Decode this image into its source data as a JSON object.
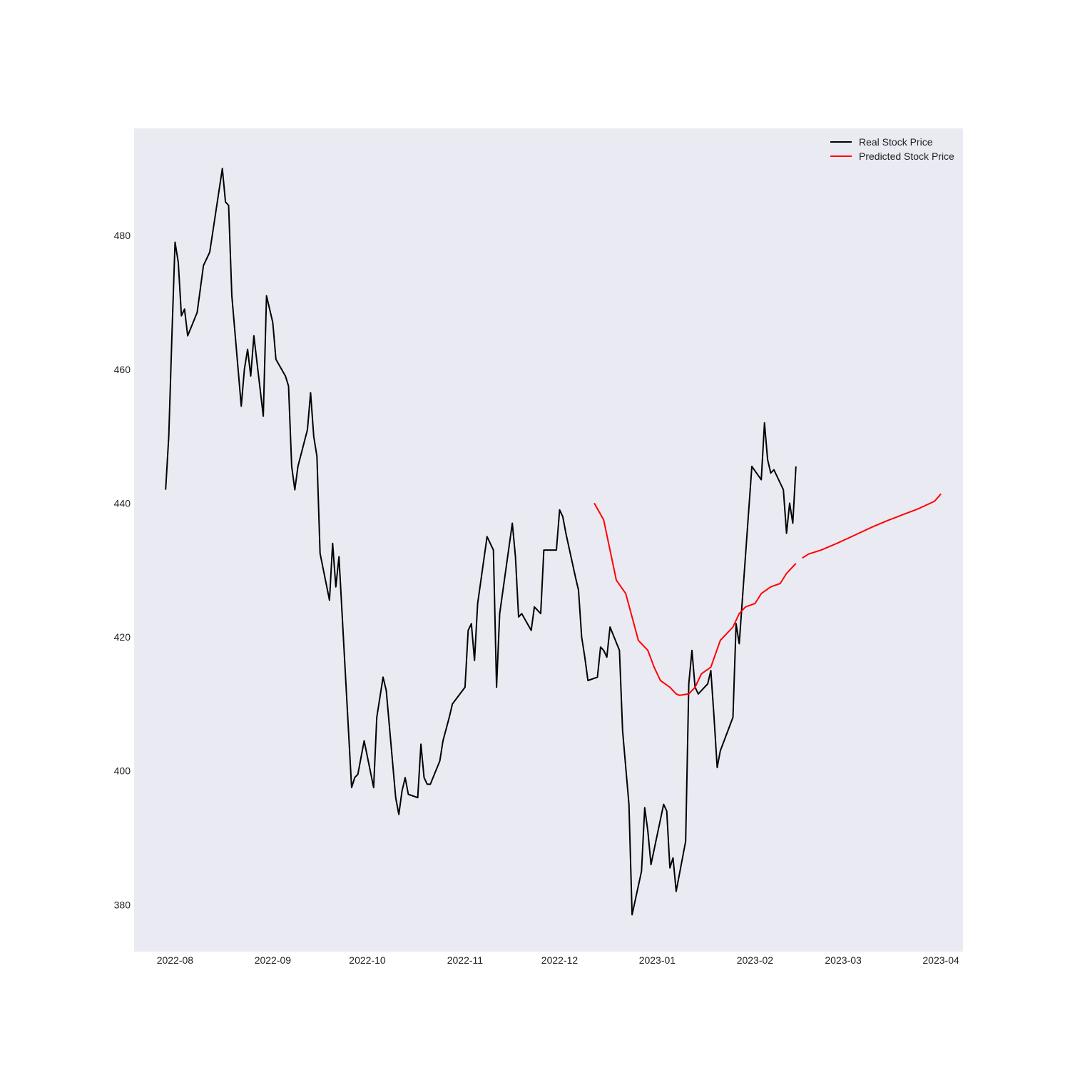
{
  "chart_data": {
    "type": "line",
    "title": "",
    "xlabel": "",
    "ylabel": "",
    "ylim": [
      373,
      496
    ],
    "xlim": [
      "2022-07-19",
      "2023-04-08"
    ],
    "y_ticks": [
      380,
      400,
      420,
      440,
      460,
      480
    ],
    "x_ticks": [
      "2022-08",
      "2022-09",
      "2022-10",
      "2022-11",
      "2022-12",
      "2023-01",
      "2023-02",
      "2023-03",
      "2023-04"
    ],
    "grid": false,
    "background": "#EAEAF2",
    "legend": {
      "position": "top-right"
    },
    "series": [
      {
        "name": "Real Stock Price",
        "color": "#000000",
        "points": [
          [
            "2022-07-29",
            442.0
          ],
          [
            "2022-07-30",
            450.0
          ],
          [
            "2022-07-31",
            465.0
          ],
          [
            "2022-08-01",
            479.0
          ],
          [
            "2022-08-02",
            476.0
          ],
          [
            "2022-08-03",
            468.0
          ],
          [
            "2022-08-04",
            469.0
          ],
          [
            "2022-08-05",
            465.0
          ],
          [
            "2022-08-08",
            468.5
          ],
          [
            "2022-08-10",
            475.5
          ],
          [
            "2022-08-12",
            477.5
          ],
          [
            "2022-08-16",
            490.0
          ],
          [
            "2022-08-17",
            485.0
          ],
          [
            "2022-08-18",
            484.5
          ],
          [
            "2022-08-19",
            471.0
          ],
          [
            "2022-08-22",
            454.5
          ],
          [
            "2022-08-23",
            460.0
          ],
          [
            "2022-08-24",
            463.0
          ],
          [
            "2022-08-25",
            459.0
          ],
          [
            "2022-08-26",
            465.0
          ],
          [
            "2022-08-29",
            453.0
          ],
          [
            "2022-08-30",
            471.0
          ],
          [
            "2022-09-01",
            467.0
          ],
          [
            "2022-09-02",
            461.5
          ],
          [
            "2022-09-05",
            459.0
          ],
          [
            "2022-09-06",
            457.5
          ],
          [
            "2022-09-07",
            445.5
          ],
          [
            "2022-09-08",
            442.0
          ],
          [
            "2022-09-09",
            445.5
          ],
          [
            "2022-09-12",
            451.0
          ],
          [
            "2022-09-13",
            456.5
          ],
          [
            "2022-09-14",
            450.0
          ],
          [
            "2022-09-15",
            447.0
          ],
          [
            "2022-09-16",
            432.5
          ],
          [
            "2022-09-19",
            425.5
          ],
          [
            "2022-09-20",
            434.0
          ],
          [
            "2022-09-21",
            427.5
          ],
          [
            "2022-09-22",
            432.0
          ],
          [
            "2022-09-26",
            397.5
          ],
          [
            "2022-09-27",
            399.0
          ],
          [
            "2022-09-28",
            399.5
          ],
          [
            "2022-09-29",
            402.0
          ],
          [
            "2022-09-30",
            404.5
          ],
          [
            "2022-10-03",
            397.5
          ],
          [
            "2022-10-04",
            408.0
          ],
          [
            "2022-10-06",
            414.0
          ],
          [
            "2022-10-07",
            412.0
          ],
          [
            "2022-10-10",
            396.0
          ],
          [
            "2022-10-11",
            393.5
          ],
          [
            "2022-10-12",
            397.0
          ],
          [
            "2022-10-13",
            399.0
          ],
          [
            "2022-10-14",
            396.5
          ],
          [
            "2022-10-17",
            396.0
          ],
          [
            "2022-10-18",
            404.0
          ],
          [
            "2022-10-19",
            399.0
          ],
          [
            "2022-10-20",
            398.0
          ],
          [
            "2022-10-21",
            398.0
          ],
          [
            "2022-10-24",
            401.5
          ],
          [
            "2022-10-25",
            404.5
          ],
          [
            "2022-10-27",
            408.0
          ],
          [
            "2022-10-28",
            410.0
          ],
          [
            "2022-11-01",
            412.5
          ],
          [
            "2022-11-02",
            421.0
          ],
          [
            "2022-11-03",
            422.0
          ],
          [
            "2022-11-04",
            416.5
          ],
          [
            "2022-11-05",
            425.0
          ],
          [
            "2022-11-08",
            435.0
          ],
          [
            "2022-11-10",
            433.0
          ],
          [
            "2022-11-11",
            412.5
          ],
          [
            "2022-11-12",
            423.5
          ],
          [
            "2022-11-16",
            437.0
          ],
          [
            "2022-11-17",
            432.0
          ],
          [
            "2022-11-18",
            423.0
          ],
          [
            "2022-11-19",
            423.5
          ],
          [
            "2022-11-22",
            421.0
          ],
          [
            "2022-11-23",
            424.5
          ],
          [
            "2022-11-25",
            423.5
          ],
          [
            "2022-11-26",
            433.0
          ],
          [
            "2022-11-29",
            433.0
          ],
          [
            "2022-11-30",
            433.0
          ],
          [
            "2022-12-01",
            439.0
          ],
          [
            "2022-12-02",
            438.0
          ],
          [
            "2022-12-03",
            435.5
          ],
          [
            "2022-12-06",
            429.0
          ],
          [
            "2022-12-07",
            427.0
          ],
          [
            "2022-12-08",
            420.0
          ],
          [
            "2022-12-09",
            417.0
          ],
          [
            "2022-12-10",
            413.5
          ],
          [
            "2022-12-13",
            414.0
          ],
          [
            "2022-12-14",
            418.5
          ],
          [
            "2022-12-15",
            418.0
          ],
          [
            "2022-12-16",
            417.0
          ],
          [
            "2022-12-17",
            421.5
          ],
          [
            "2022-12-20",
            418.0
          ],
          [
            "2022-12-21",
            406.0
          ],
          [
            "2022-12-23",
            395.0
          ],
          [
            "2022-12-24",
            378.5
          ],
          [
            "2022-12-27",
            385.0
          ],
          [
            "2022-12-28",
            394.5
          ],
          [
            "2022-12-29",
            391.0
          ],
          [
            "2022-12-30",
            386.0
          ],
          [
            "2023-01-03",
            395.0
          ],
          [
            "2023-01-04",
            394.0
          ],
          [
            "2023-01-05",
            385.5
          ],
          [
            "2023-01-06",
            387.0
          ],
          [
            "2023-01-07",
            382.0
          ],
          [
            "2023-01-10",
            389.5
          ],
          [
            "2023-01-11",
            413.0
          ],
          [
            "2023-01-12",
            418.0
          ],
          [
            "2023-01-13",
            412.5
          ],
          [
            "2023-01-14",
            411.5
          ],
          [
            "2023-01-17",
            413.0
          ],
          [
            "2023-01-18",
            415.0
          ],
          [
            "2023-01-19",
            408.0
          ],
          [
            "2023-01-20",
            400.5
          ],
          [
            "2023-01-21",
            403.0
          ],
          [
            "2023-01-25",
            408.0
          ],
          [
            "2023-01-26",
            422.0
          ],
          [
            "2023-01-27",
            419.0
          ],
          [
            "2023-01-31",
            445.5
          ],
          [
            "2023-02-03",
            443.5
          ],
          [
            "2023-02-04",
            452.0
          ],
          [
            "2023-02-05",
            446.5
          ],
          [
            "2023-02-06",
            444.5
          ],
          [
            "2023-02-07",
            445.0
          ],
          [
            "2023-02-10",
            442.0
          ],
          [
            "2023-02-11",
            435.5
          ],
          [
            "2023-02-12",
            440.0
          ],
          [
            "2023-02-13",
            437.0
          ],
          [
            "2023-02-14",
            445.5
          ]
        ]
      },
      {
        "name": "Predicted Stock Price",
        "color": "#FF0000",
        "segments": [
          [
            [
              "2022-12-12",
              440.0
            ],
            [
              "2022-12-15",
              437.5
            ],
            [
              "2022-12-19",
              428.5
            ],
            [
              "2022-12-22",
              426.5
            ],
            [
              "2022-12-26",
              419.5
            ],
            [
              "2022-12-29",
              418.0
            ],
            [
              "2022-12-31",
              415.5
            ],
            [
              "2023-01-02",
              413.5
            ],
            [
              "2023-01-05",
              412.5
            ],
            [
              "2023-01-07",
              411.5
            ],
            [
              "2023-01-08",
              411.3
            ],
            [
              "2023-01-11",
              411.5
            ],
            [
              "2023-01-13",
              412.5
            ],
            [
              "2023-01-15",
              414.5
            ],
            [
              "2023-01-18",
              415.5
            ],
            [
              "2023-01-21",
              419.5
            ],
            [
              "2023-01-25",
              421.5
            ],
            [
              "2023-01-27",
              423.5
            ],
            [
              "2023-01-29",
              424.5
            ],
            [
              "2023-02-01",
              425.0
            ],
            [
              "2023-02-03",
              426.5
            ],
            [
              "2023-02-06",
              427.5
            ],
            [
              "2023-02-09",
              428.0
            ],
            [
              "2023-02-11",
              429.5
            ],
            [
              "2023-02-14",
              431.0
            ]
          ],
          [
            [
              "2023-02-16",
              431.8
            ],
            [
              "2023-02-18",
              432.4
            ],
            [
              "2023-02-22",
              433.0
            ],
            [
              "2023-02-27",
              434.0
            ],
            [
              "2023-03-05",
              435.3
            ],
            [
              "2023-03-10",
              436.4
            ],
            [
              "2023-03-15",
              437.4
            ],
            [
              "2023-03-20",
              438.3
            ],
            [
              "2023-03-25",
              439.2
            ],
            [
              "2023-03-30",
              440.3
            ],
            [
              "2023-04-01",
              441.4
            ]
          ]
        ]
      }
    ]
  }
}
